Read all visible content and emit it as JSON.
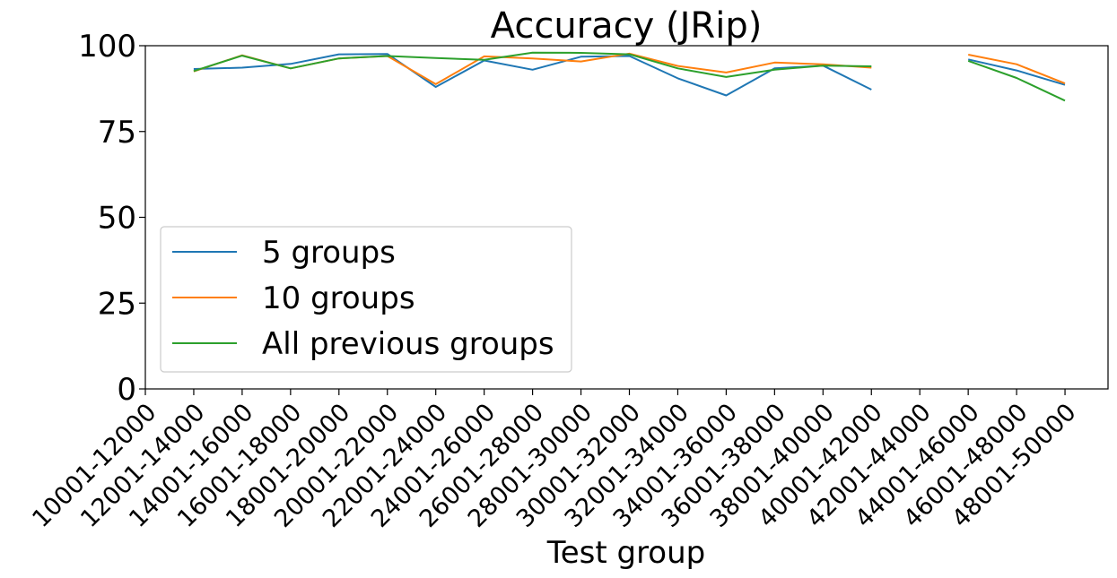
{
  "chart_data": {
    "type": "line",
    "title": "Accuracy (JRip)",
    "xlabel": "Test group",
    "ylabel": "",
    "ylim": [
      0,
      100
    ],
    "yticks": [
      0,
      25,
      50,
      75,
      100
    ],
    "grid": false,
    "legend_position": "lower-left",
    "categories": [
      "10001-12000",
      "12001-14000",
      "14001-16000",
      "16001-18000",
      "18001-20000",
      "20001-22000",
      "22001-24000",
      "24001-26000",
      "26001-28000",
      "28001-30000",
      "30001-32000",
      "32001-34000",
      "34001-36000",
      "36001-38000",
      "38001-40000",
      "40001-42000",
      "42001-44000",
      "44001-46000",
      "46001-48000",
      "48001-50000"
    ],
    "series": [
      {
        "name": "5 groups",
        "color": "#1f77b4",
        "values": [
          null,
          93.2,
          93.6,
          94.7,
          97.5,
          97.6,
          88.0,
          95.7,
          93.0,
          96.8,
          97.0,
          90.5,
          85.5,
          93.4,
          94.2,
          87.2,
          null,
          96.0,
          92.8,
          88.6
        ]
      },
      {
        "name": "10 groups",
        "color": "#ff7f0e",
        "values": [
          null,
          92.5,
          97.2,
          93.4,
          96.3,
          97.0,
          88.8,
          96.9,
          96.3,
          95.4,
          97.7,
          94.1,
          92.2,
          95.1,
          94.6,
          93.6,
          null,
          97.4,
          94.6,
          89.0
        ]
      },
      {
        "name": "All previous groups",
        "color": "#2ca02c",
        "values": [
          null,
          92.6,
          97.1,
          93.4,
          96.3,
          97.0,
          96.4,
          95.9,
          98.0,
          97.9,
          97.5,
          93.4,
          90.9,
          93.0,
          94.2,
          94.0,
          null,
          95.6,
          90.6,
          84.0
        ]
      }
    ]
  }
}
